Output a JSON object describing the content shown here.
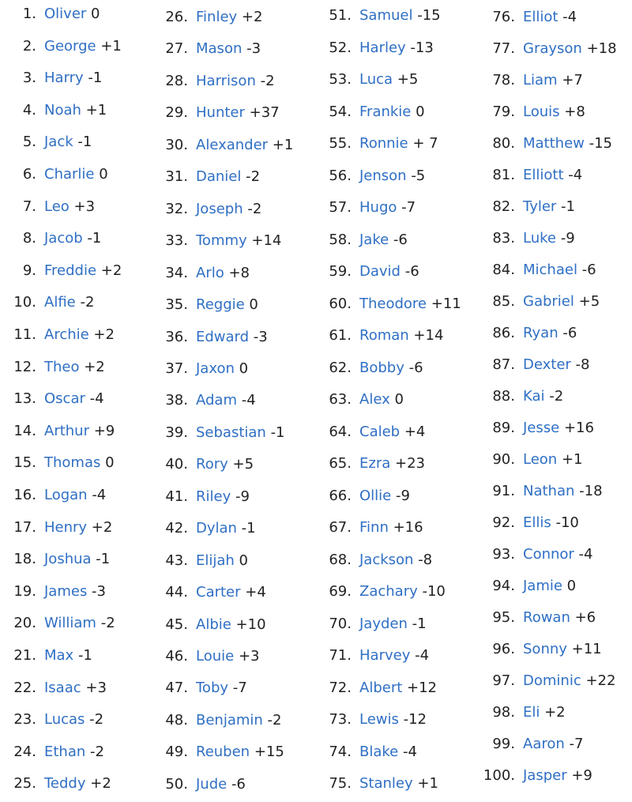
{
  "link_color": "#2f6fc4",
  "names": [
    [
      "Oliver",
      "0"
    ],
    [
      "George",
      "+1"
    ],
    [
      "Harry",
      "-1"
    ],
    [
      "Noah",
      "+1"
    ],
    [
      "Jack",
      "-1"
    ],
    [
      "Charlie",
      "0"
    ],
    [
      "Leo",
      "+3"
    ],
    [
      "Jacob",
      "-1"
    ],
    [
      "Freddie",
      "+2"
    ],
    [
      "Alfie",
      "-2"
    ],
    [
      "Archie",
      "+2"
    ],
    [
      "Theo",
      "+2"
    ],
    [
      "Oscar",
      "-4"
    ],
    [
      "Arthur",
      "+9"
    ],
    [
      "Thomas",
      "0"
    ],
    [
      "Logan",
      "-4"
    ],
    [
      "Henry",
      "+2"
    ],
    [
      "Joshua",
      "-1"
    ],
    [
      "James",
      "-3"
    ],
    [
      "William",
      "-2"
    ],
    [
      "Max",
      "-1"
    ],
    [
      "Isaac",
      "+3"
    ],
    [
      "Lucas",
      "-2"
    ],
    [
      "Ethan",
      "-2"
    ],
    [
      "Teddy",
      "+2"
    ],
    [
      "Finley",
      "+2"
    ],
    [
      "Mason",
      "-3"
    ],
    [
      "Harrison",
      "-2"
    ],
    [
      "Hunter",
      "+37"
    ],
    [
      "Alexander",
      "+1"
    ],
    [
      "Daniel",
      "-2"
    ],
    [
      "Joseph",
      "-2"
    ],
    [
      "Tommy",
      "+14"
    ],
    [
      "Arlo",
      "+8"
    ],
    [
      "Reggie",
      "0"
    ],
    [
      "Edward",
      "-3"
    ],
    [
      "Jaxon",
      "0"
    ],
    [
      "Adam",
      "-4"
    ],
    [
      "Sebastian",
      "-1"
    ],
    [
      "Rory",
      "+5"
    ],
    [
      "Riley",
      "-9"
    ],
    [
      "Dylan",
      "-1"
    ],
    [
      "Elijah",
      "0"
    ],
    [
      "Carter",
      "+4"
    ],
    [
      "Albie",
      "+10"
    ],
    [
      "Louie",
      "+3"
    ],
    [
      "Toby",
      "-7"
    ],
    [
      "Benjamin",
      "-2"
    ],
    [
      "Reuben",
      "+15"
    ],
    [
      "Jude",
      "-6"
    ],
    [
      "Samuel",
      "-15"
    ],
    [
      "Harley",
      "-13"
    ],
    [
      "Luca",
      "+5"
    ],
    [
      "Frankie",
      "0"
    ],
    [
      "Ronnie",
      "+ 7"
    ],
    [
      "Jenson",
      "-5"
    ],
    [
      "Hugo",
      "-7"
    ],
    [
      "Jake",
      "-6"
    ],
    [
      "David",
      "-6"
    ],
    [
      "Theodore",
      "+11"
    ],
    [
      "Roman",
      "+14"
    ],
    [
      "Bobby",
      "-6"
    ],
    [
      "Alex",
      "0"
    ],
    [
      "Caleb",
      "+4"
    ],
    [
      "Ezra",
      "+23"
    ],
    [
      "Ollie",
      "-9"
    ],
    [
      "Finn",
      "+16"
    ],
    [
      "Jackson",
      "-8"
    ],
    [
      "Zachary",
      "-10"
    ],
    [
      "Jayden",
      "-1"
    ],
    [
      "Harvey",
      "-4"
    ],
    [
      "Albert",
      "+12"
    ],
    [
      "Lewis",
      "-12"
    ],
    [
      "Blake",
      "-4"
    ],
    [
      "Stanley",
      "+1"
    ],
    [
      "Elliot",
      "-4"
    ],
    [
      "Grayson",
      "+18"
    ],
    [
      "Liam",
      "+7"
    ],
    [
      "Louis",
      "+8"
    ],
    [
      "Matthew",
      "-15"
    ],
    [
      "Elliott",
      "-4"
    ],
    [
      "Tyler",
      "-1"
    ],
    [
      "Luke",
      "-9"
    ],
    [
      "Michael",
      "-6"
    ],
    [
      "Gabriel",
      "+5"
    ],
    [
      "Ryan",
      "-6"
    ],
    [
      "Dexter",
      "-8"
    ],
    [
      "Kai",
      "-2"
    ],
    [
      "Jesse",
      "+16"
    ],
    [
      "Leon",
      "+1"
    ],
    [
      "Nathan",
      "-18"
    ],
    [
      "Ellis",
      "-10"
    ],
    [
      "Connor",
      "-4"
    ],
    [
      "Jamie",
      "0"
    ],
    [
      "Rowan",
      "+6"
    ],
    [
      "Sonny",
      "+11"
    ],
    [
      "Dominic",
      "+22"
    ],
    [
      "Eli",
      "+2"
    ],
    [
      "Aaron",
      "-7"
    ],
    [
      "Jasper",
      "+9"
    ]
  ]
}
